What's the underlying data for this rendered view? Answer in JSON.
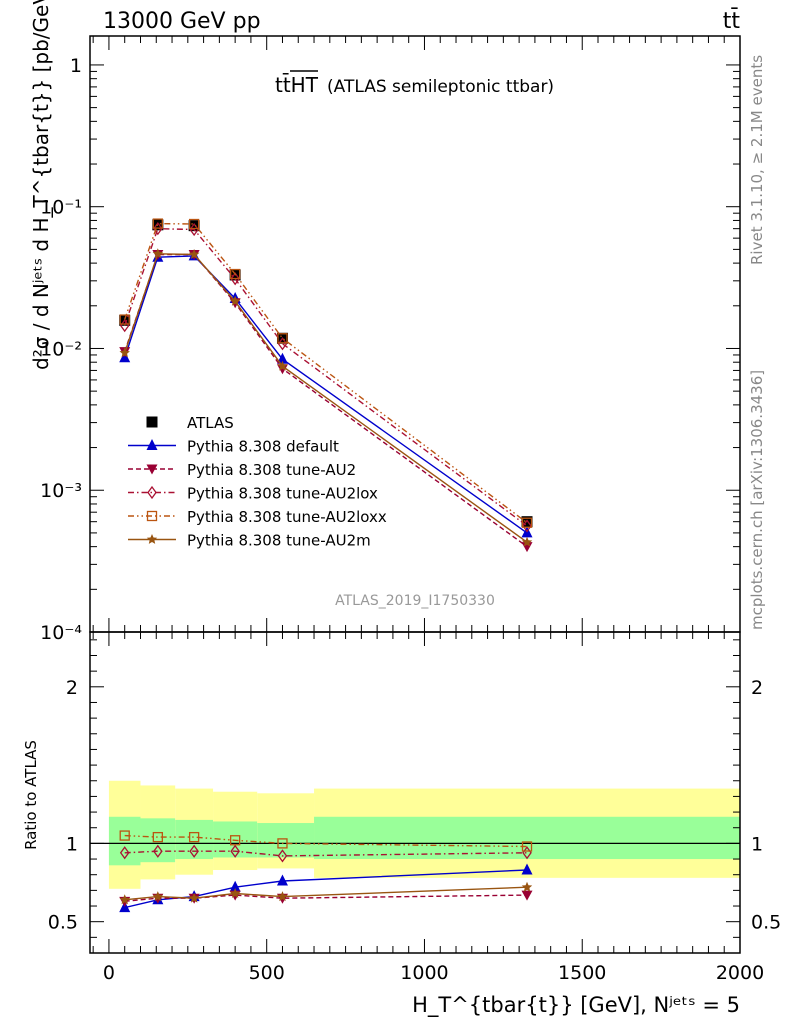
{
  "header": {
    "left_label": "13000 GeV pp",
    "right_label": "tt̄"
  },
  "side": {
    "rivet_label": "Rivet 3.1.10, ≥ 2.1M events",
    "mcplots_label": "mcplots.cern.ch [arXiv:1306.3436]"
  },
  "chart_data": [
    {
      "type": "line",
      "title": "tt̄HT",
      "subtitle": "(ATLAS semileptonic ttbar)",
      "watermark": "ATLAS_2019_I1750330",
      "ylabel": "d²σ / d Nʲᵉᵗˢ d H_T^{tbar{t}} [pb/GeV]",
      "yscale": "log",
      "ylim": [
        0.0001,
        1.6
      ],
      "xlim": [
        -60,
        2000
      ],
      "yticks": [
        {
          "value": 1,
          "label": "1"
        },
        {
          "value": 0.1,
          "label": "10⁻¹"
        },
        {
          "value": 0.01,
          "label": "10⁻²"
        },
        {
          "value": 0.001,
          "label": "10⁻³"
        },
        {
          "value": 0.0001,
          "label": "10⁻⁴"
        }
      ],
      "legend_position": "bottom-left",
      "x": [
        50,
        155,
        270,
        400,
        550,
        1325
      ],
      "series": [
        {
          "name": "ATLAS",
          "color": "#000000",
          "marker": "square-filled",
          "dash": "none",
          "values": [
            0.0158,
            0.0745,
            0.0735,
            0.033,
            0.0118,
            0.0006
          ]
        },
        {
          "name": "Pythia 8.308 default",
          "color": "#0000cc",
          "marker": "triangle-up-filled",
          "dash": "solid",
          "values": [
            0.0086,
            0.044,
            0.045,
            0.0225,
            0.0084,
            0.0005
          ]
        },
        {
          "name": "Pythia 8.308 tune-AU2",
          "color": "#990033",
          "marker": "triangle-down-filled",
          "dash": "dashed",
          "values": [
            0.0095,
            0.046,
            0.046,
            0.021,
            0.0072,
            0.0004
          ]
        },
        {
          "name": "Pythia 8.308 tune-AU2lox",
          "color": "#aa1133",
          "marker": "diamond-open",
          "dash": "dashdot",
          "values": [
            0.0145,
            0.07,
            0.069,
            0.031,
            0.0108,
            0.00056
          ]
        },
        {
          "name": "Pythia 8.308 tune-AU2loxx",
          "color": "#bb5511",
          "marker": "square-open",
          "dash": "dashdotdot",
          "values": [
            0.016,
            0.076,
            0.0755,
            0.0335,
            0.0118,
            0.00059
          ]
        },
        {
          "name": "Pythia 8.308 tune-AU2m",
          "color": "#995511",
          "marker": "star",
          "dash": "solid",
          "values": [
            0.0093,
            0.0465,
            0.046,
            0.0215,
            0.0075,
            0.00043
          ]
        }
      ]
    },
    {
      "type": "line",
      "ylabel": "Ratio to ATLAS",
      "xlabel": "H_T^{tbar{t}} [GeV], Nʲᵉᵗˢ = 5",
      "ylim": [
        0.3,
        2.35
      ],
      "xlim": [
        -60,
        2000
      ],
      "yticks": [
        {
          "value": 0.5,
          "label": "0.5"
        },
        {
          "value": 1,
          "label": "1"
        },
        {
          "value": 2,
          "label": "2"
        }
      ],
      "xticks": [
        {
          "value": 0,
          "label": "0"
        },
        {
          "value": 500,
          "label": "500"
        },
        {
          "value": 1000,
          "label": "1000"
        },
        {
          "value": 1500,
          "label": "1500"
        },
        {
          "value": 2000,
          "label": "2000"
        }
      ],
      "bands": {
        "edges": [
          0,
          100,
          210,
          330,
          470,
          650,
          2000
        ],
        "outer": [
          [
            0.71,
            1.4
          ],
          [
            0.77,
            1.37
          ],
          [
            0.8,
            1.35
          ],
          [
            0.83,
            1.33
          ],
          [
            0.84,
            1.32
          ],
          [
            0.78,
            1.35
          ]
        ],
        "inner": [
          [
            0.86,
            1.17
          ],
          [
            0.88,
            1.16
          ],
          [
            0.9,
            1.15
          ],
          [
            0.91,
            1.14
          ],
          [
            0.91,
            1.13
          ],
          [
            0.9,
            1.17
          ]
        ],
        "outer_color": "#ffff99",
        "inner_color": "#99ff99"
      },
      "x": [
        50,
        155,
        270,
        400,
        550,
        1325
      ],
      "series": [
        {
          "name": "Pythia 8.308 default",
          "color": "#0000cc",
          "marker": "triangle-up-filled",
          "dash": "solid",
          "values": [
            0.59,
            0.64,
            0.66,
            0.72,
            0.76,
            0.83
          ]
        },
        {
          "name": "Pythia 8.308 tune-AU2",
          "color": "#990033",
          "marker": "triangle-down-filled",
          "dash": "dashed",
          "values": [
            0.63,
            0.65,
            0.65,
            0.67,
            0.65,
            0.67
          ]
        },
        {
          "name": "Pythia 8.308 tune-AU2lox",
          "color": "#aa1133",
          "marker": "diamond-open",
          "dash": "dashdot",
          "values": [
            0.94,
            0.95,
            0.95,
            0.95,
            0.92,
            0.94
          ]
        },
        {
          "name": "Pythia 8.308 tune-AU2loxx",
          "color": "#bb5511",
          "marker": "square-open",
          "dash": "dashdotdot",
          "values": [
            1.05,
            1.04,
            1.04,
            1.02,
            1.0,
            0.98
          ]
        },
        {
          "name": "Pythia 8.308 tune-AU2m",
          "color": "#995511",
          "marker": "star",
          "dash": "solid",
          "values": [
            0.64,
            0.66,
            0.65,
            0.68,
            0.66,
            0.72
          ]
        }
      ]
    }
  ]
}
